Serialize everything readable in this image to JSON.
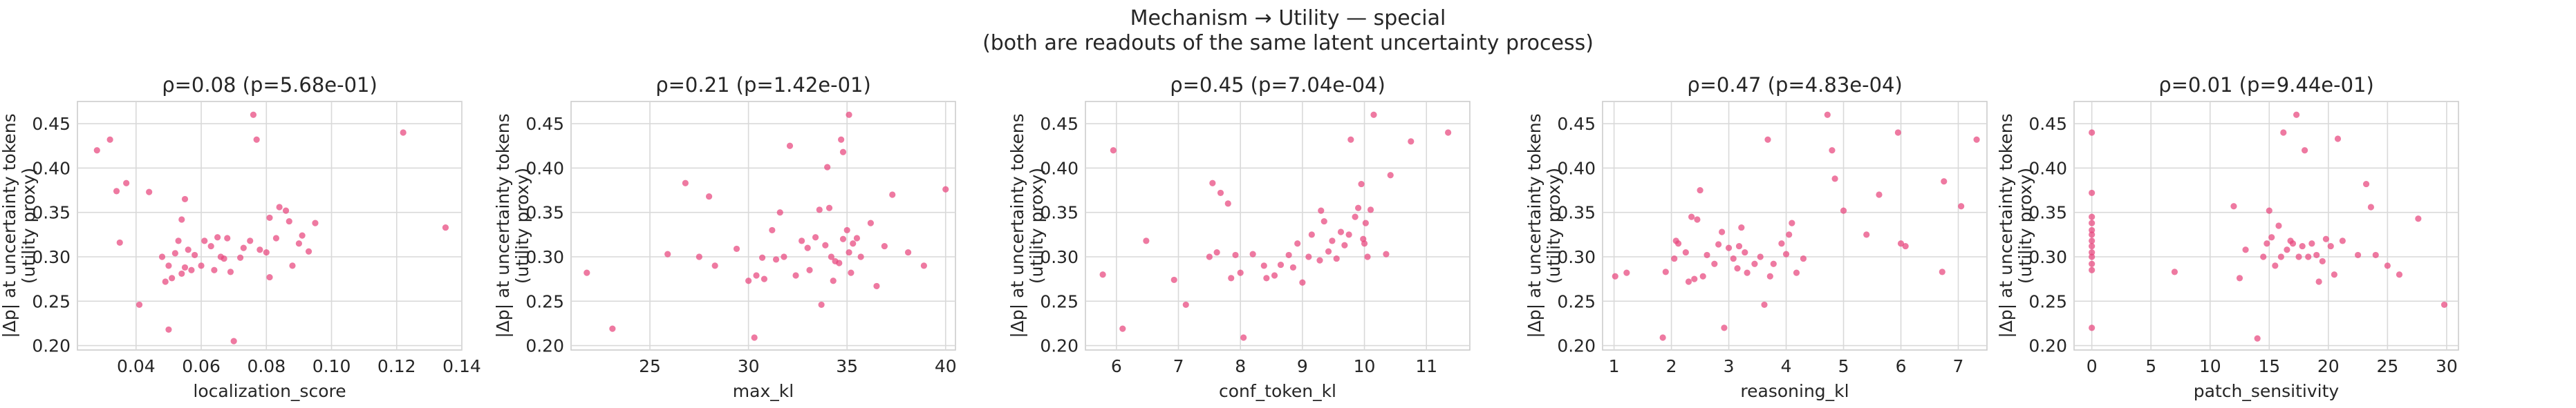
{
  "suptitle_line1": "Mechanism → Utility — special",
  "suptitle_line2": "(both are readouts of the same latent uncertainty process)",
  "point_color": "#e8457d",
  "chart_data": [
    {
      "type": "scatter",
      "title": "ρ=0.08 (p=5.68e-01)",
      "xlabel": "localization_score",
      "ylabel_line1": "|Δp| at uncertainty tokens",
      "ylabel_line2": "(utility proxy)",
      "xlim": [
        0.022,
        0.14
      ],
      "ylim": [
        0.195,
        0.475
      ],
      "xticks": [
        0.04,
        0.06,
        0.08,
        0.1,
        0.12,
        0.14
      ],
      "xtick_labels": [
        "0.04",
        "0.06",
        "0.08",
        "0.10",
        "0.12",
        "0.14"
      ],
      "yticks": [
        0.2,
        0.25,
        0.3,
        0.35,
        0.4,
        0.45
      ],
      "ytick_labels": [
        "0.20",
        "0.25",
        "0.30",
        "0.35",
        "0.40",
        "0.45"
      ],
      "points": [
        [
          0.028,
          0.42
        ],
        [
          0.032,
          0.432
        ],
        [
          0.034,
          0.374
        ],
        [
          0.035,
          0.316
        ],
        [
          0.037,
          0.383
        ],
        [
          0.041,
          0.246
        ],
        [
          0.044,
          0.373
        ],
        [
          0.048,
          0.3
        ],
        [
          0.049,
          0.272
        ],
        [
          0.05,
          0.218
        ],
        [
          0.05,
          0.29
        ],
        [
          0.051,
          0.276
        ],
        [
          0.052,
          0.304
        ],
        [
          0.053,
          0.318
        ],
        [
          0.054,
          0.342
        ],
        [
          0.054,
          0.281
        ],
        [
          0.055,
          0.288
        ],
        [
          0.055,
          0.365
        ],
        [
          0.056,
          0.308
        ],
        [
          0.057,
          0.285
        ],
        [
          0.058,
          0.302
        ],
        [
          0.06,
          0.29
        ],
        [
          0.061,
          0.318
        ],
        [
          0.063,
          0.312
        ],
        [
          0.064,
          0.285
        ],
        [
          0.065,
          0.322
        ],
        [
          0.066,
          0.3
        ],
        [
          0.067,
          0.298
        ],
        [
          0.068,
          0.321
        ],
        [
          0.069,
          0.283
        ],
        [
          0.07,
          0.205
        ],
        [
          0.072,
          0.299
        ],
        [
          0.073,
          0.31
        ],
        [
          0.075,
          0.318
        ],
        [
          0.076,
          0.46
        ],
        [
          0.077,
          0.432
        ],
        [
          0.078,
          0.308
        ],
        [
          0.08,
          0.305
        ],
        [
          0.081,
          0.344
        ],
        [
          0.081,
          0.277
        ],
        [
          0.083,
          0.321
        ],
        [
          0.084,
          0.356
        ],
        [
          0.086,
          0.352
        ],
        [
          0.087,
          0.34
        ],
        [
          0.088,
          0.29
        ],
        [
          0.09,
          0.315
        ],
        [
          0.091,
          0.324
        ],
        [
          0.093,
          0.306
        ],
        [
          0.095,
          0.338
        ],
        [
          0.122,
          0.44
        ],
        [
          0.135,
          0.333
        ]
      ]
    },
    {
      "type": "scatter",
      "title": "ρ=0.21 (p=1.42e-01)",
      "xlabel": "max_kl",
      "ylabel_line1": "|Δp| at uncertainty tokens",
      "ylabel_line2": "(utility proxy)",
      "xlim": [
        21.0,
        40.5
      ],
      "ylim": [
        0.195,
        0.475
      ],
      "xticks": [
        25,
        30,
        35,
        40
      ],
      "xtick_labels": [
        "25",
        "30",
        "35",
        "40"
      ],
      "yticks": [
        0.2,
        0.25,
        0.3,
        0.35,
        0.4,
        0.45
      ],
      "ytick_labels": [
        "0.20",
        "0.25",
        "0.30",
        "0.35",
        "0.40",
        "0.45"
      ],
      "points": [
        [
          21.8,
          0.282
        ],
        [
          23.1,
          0.219
        ],
        [
          25.9,
          0.303
        ],
        [
          26.8,
          0.383
        ],
        [
          27.5,
          0.3
        ],
        [
          28.0,
          0.368
        ],
        [
          28.3,
          0.29
        ],
        [
          29.4,
          0.309
        ],
        [
          30.0,
          0.273
        ],
        [
          30.3,
          0.209
        ],
        [
          30.4,
          0.279
        ],
        [
          30.7,
          0.299
        ],
        [
          30.8,
          0.275
        ],
        [
          31.2,
          0.33
        ],
        [
          31.4,
          0.297
        ],
        [
          31.6,
          0.35
        ],
        [
          31.8,
          0.3
        ],
        [
          32.1,
          0.425
        ],
        [
          32.4,
          0.279
        ],
        [
          32.7,
          0.318
        ],
        [
          33.0,
          0.31
        ],
        [
          33.1,
          0.285
        ],
        [
          33.4,
          0.322
        ],
        [
          33.6,
          0.353
        ],
        [
          33.7,
          0.246
        ],
        [
          33.9,
          0.313
        ],
        [
          34.0,
          0.401
        ],
        [
          34.1,
          0.355
        ],
        [
          34.2,
          0.3
        ],
        [
          34.3,
          0.273
        ],
        [
          34.4,
          0.295
        ],
        [
          34.6,
          0.293
        ],
        [
          34.7,
          0.432
        ],
        [
          34.8,
          0.418
        ],
        [
          34.8,
          0.32
        ],
        [
          35.0,
          0.33
        ],
        [
          35.1,
          0.305
        ],
        [
          35.1,
          0.46
        ],
        [
          35.2,
          0.282
        ],
        [
          35.3,
          0.315
        ],
        [
          35.5,
          0.321
        ],
        [
          35.7,
          0.3
        ],
        [
          36.2,
          0.338
        ],
        [
          36.5,
          0.267
        ],
        [
          36.9,
          0.312
        ],
        [
          37.3,
          0.37
        ],
        [
          38.1,
          0.305
        ],
        [
          38.9,
          0.29
        ],
        [
          40.0,
          0.376
        ]
      ]
    },
    {
      "type": "scatter",
      "title": "ρ=0.45 (p=7.04e-04)",
      "xlabel": "conf_token_kl",
      "ylabel_line1": "|Δp| at uncertainty tokens",
      "ylabel_line2": "(utility proxy)",
      "xlim": [
        5.5,
        11.7
      ],
      "ylim": [
        0.195,
        0.475
      ],
      "xticks": [
        6,
        7,
        8,
        9,
        10,
        11
      ],
      "xtick_labels": [
        "6",
        "7",
        "8",
        "9",
        "10",
        "11"
      ],
      "yticks": [
        0.2,
        0.25,
        0.3,
        0.35,
        0.4,
        0.45
      ],
      "ytick_labels": [
        "0.20",
        "0.25",
        "0.30",
        "0.35",
        "0.40",
        "0.45"
      ],
      "points": [
        [
          5.78,
          0.28
        ],
        [
          5.95,
          0.42
        ],
        [
          6.1,
          0.219
        ],
        [
          6.48,
          0.318
        ],
        [
          6.93,
          0.274
        ],
        [
          7.12,
          0.246
        ],
        [
          7.5,
          0.3
        ],
        [
          7.55,
          0.383
        ],
        [
          7.62,
          0.305
        ],
        [
          7.68,
          0.372
        ],
        [
          7.8,
          0.36
        ],
        [
          7.85,
          0.276
        ],
        [
          7.92,
          0.302
        ],
        [
          8.0,
          0.282
        ],
        [
          8.05,
          0.209
        ],
        [
          8.2,
          0.303
        ],
        [
          8.38,
          0.29
        ],
        [
          8.42,
          0.276
        ],
        [
          8.55,
          0.279
        ],
        [
          8.65,
          0.291
        ],
        [
          8.78,
          0.302
        ],
        [
          8.85,
          0.288
        ],
        [
          8.92,
          0.315
        ],
        [
          9.0,
          0.271
        ],
        [
          9.1,
          0.3
        ],
        [
          9.15,
          0.325
        ],
        [
          9.28,
          0.296
        ],
        [
          9.3,
          0.352
        ],
        [
          9.35,
          0.34
        ],
        [
          9.42,
          0.306
        ],
        [
          9.48,
          0.318
        ],
        [
          9.55,
          0.298
        ],
        [
          9.62,
          0.328
        ],
        [
          9.68,
          0.313
        ],
        [
          9.75,
          0.325
        ],
        [
          9.78,
          0.432
        ],
        [
          9.85,
          0.345
        ],
        [
          9.9,
          0.355
        ],
        [
          9.95,
          0.382
        ],
        [
          9.98,
          0.32
        ],
        [
          10.0,
          0.315
        ],
        [
          10.02,
          0.338
        ],
        [
          10.05,
          0.3
        ],
        [
          10.1,
          0.353
        ],
        [
          10.15,
          0.46
        ],
        [
          10.35,
          0.303
        ],
        [
          10.42,
          0.392
        ],
        [
          10.75,
          0.43
        ],
        [
          11.35,
          0.44
        ]
      ]
    },
    {
      "type": "scatter",
      "title": "ρ=0.47 (p=4.83e-04)",
      "xlabel": "reasoning_kl",
      "ylabel_line1": "|Δp| at uncertainty tokens",
      "ylabel_line2": "(utility proxy)",
      "xlim": [
        0.8,
        7.5
      ],
      "ylim": [
        0.195,
        0.475
      ],
      "xticks": [
        1,
        2,
        3,
        4,
        5,
        6,
        7
      ],
      "xtick_labels": [
        "1",
        "2",
        "3",
        "4",
        "5",
        "6",
        "7"
      ],
      "yticks": [
        0.2,
        0.25,
        0.3,
        0.35,
        0.4,
        0.45
      ],
      "ytick_labels": [
        "0.20",
        "0.25",
        "0.30",
        "0.35",
        "0.40",
        "0.45"
      ],
      "points": [
        [
          1.02,
          0.278
        ],
        [
          1.22,
          0.282
        ],
        [
          1.85,
          0.209
        ],
        [
          1.9,
          0.283
        ],
        [
          2.05,
          0.298
        ],
        [
          2.08,
          0.318
        ],
        [
          2.12,
          0.315
        ],
        [
          2.25,
          0.305
        ],
        [
          2.3,
          0.272
        ],
        [
          2.35,
          0.345
        ],
        [
          2.4,
          0.275
        ],
        [
          2.45,
          0.342
        ],
        [
          2.5,
          0.375
        ],
        [
          2.55,
          0.278
        ],
        [
          2.62,
          0.302
        ],
        [
          2.75,
          0.292
        ],
        [
          2.82,
          0.314
        ],
        [
          2.88,
          0.328
        ],
        [
          2.92,
          0.22
        ],
        [
          3.0,
          0.31
        ],
        [
          3.08,
          0.298
        ],
        [
          3.15,
          0.287
        ],
        [
          3.18,
          0.312
        ],
        [
          3.22,
          0.333
        ],
        [
          3.28,
          0.305
        ],
        [
          3.32,
          0.282
        ],
        [
          3.45,
          0.292
        ],
        [
          3.55,
          0.3
        ],
        [
          3.62,
          0.246
        ],
        [
          3.68,
          0.432
        ],
        [
          3.72,
          0.278
        ],
        [
          3.78,
          0.292
        ],
        [
          3.92,
          0.315
        ],
        [
          4.0,
          0.303
        ],
        [
          4.05,
          0.325
        ],
        [
          4.1,
          0.338
        ],
        [
          4.18,
          0.282
        ],
        [
          4.3,
          0.298
        ],
        [
          4.72,
          0.46
        ],
        [
          4.8,
          0.42
        ],
        [
          4.85,
          0.388
        ],
        [
          5.0,
          0.352
        ],
        [
          5.4,
          0.325
        ],
        [
          5.62,
          0.37
        ],
        [
          5.95,
          0.44
        ],
        [
          6.0,
          0.315
        ],
        [
          6.08,
          0.312
        ],
        [
          6.72,
          0.283
        ],
        [
          6.75,
          0.385
        ],
        [
          7.05,
          0.357
        ],
        [
          7.32,
          0.432
        ]
      ]
    },
    {
      "type": "scatter",
      "title": "ρ=0.01 (p=9.44e-01)",
      "xlabel": "patch_sensitivity",
      "ylabel_line1": "|Δp| at uncertainty tokens",
      "ylabel_line2": "(utility proxy)",
      "xlim": [
        -1.5,
        31.0
      ],
      "ylim": [
        0.195,
        0.475
      ],
      "xticks": [
        0,
        5,
        10,
        15,
        20,
        25,
        30
      ],
      "xtick_labels": [
        "0",
        "5",
        "10",
        "15",
        "20",
        "25",
        "30"
      ],
      "yticks": [
        0.2,
        0.25,
        0.3,
        0.35,
        0.4,
        0.45
      ],
      "ytick_labels": [
        "0.20",
        "0.25",
        "0.30",
        "0.35",
        "0.40",
        "0.45"
      ],
      "points": [
        [
          0.0,
          0.44
        ],
        [
          0.0,
          0.372
        ],
        [
          0.0,
          0.345
        ],
        [
          0.0,
          0.338
        ],
        [
          0.0,
          0.33
        ],
        [
          0.0,
          0.325
        ],
        [
          0.0,
          0.318
        ],
        [
          0.0,
          0.312
        ],
        [
          0.0,
          0.305
        ],
        [
          0.0,
          0.3
        ],
        [
          0.0,
          0.292
        ],
        [
          0.0,
          0.285
        ],
        [
          0.0,
          0.22
        ],
        [
          7.0,
          0.283
        ],
        [
          12.0,
          0.357
        ],
        [
          12.5,
          0.276
        ],
        [
          13.0,
          0.308
        ],
        [
          14.0,
          0.208
        ],
        [
          14.5,
          0.3
        ],
        [
          14.8,
          0.315
        ],
        [
          15.0,
          0.352
        ],
        [
          15.2,
          0.322
        ],
        [
          15.5,
          0.29
        ],
        [
          15.8,
          0.335
        ],
        [
          16.0,
          0.3
        ],
        [
          16.2,
          0.44
        ],
        [
          16.5,
          0.308
        ],
        [
          16.8,
          0.318
        ],
        [
          17.0,
          0.315
        ],
        [
          17.3,
          0.46
        ],
        [
          17.5,
          0.3
        ],
        [
          17.8,
          0.312
        ],
        [
          18.0,
          0.42
        ],
        [
          18.3,
          0.3
        ],
        [
          18.6,
          0.315
        ],
        [
          19.0,
          0.302
        ],
        [
          19.2,
          0.272
        ],
        [
          19.5,
          0.295
        ],
        [
          19.8,
          0.32
        ],
        [
          20.2,
          0.312
        ],
        [
          20.5,
          0.28
        ],
        [
          20.8,
          0.433
        ],
        [
          21.2,
          0.318
        ],
        [
          22.5,
          0.302
        ],
        [
          23.2,
          0.382
        ],
        [
          23.6,
          0.356
        ],
        [
          24.0,
          0.302
        ],
        [
          25.0,
          0.29
        ],
        [
          26.0,
          0.28
        ],
        [
          27.6,
          0.343
        ],
        [
          29.8,
          0.246
        ]
      ]
    }
  ]
}
